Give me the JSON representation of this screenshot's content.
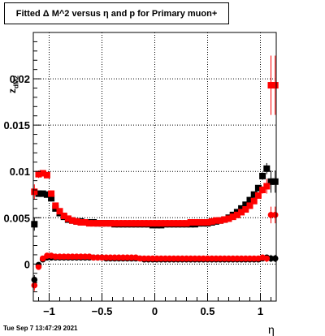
{
  "chart_data": {
    "type": "scatter",
    "title": "Fitted Δ M^2 versus η and p for Primary muon+",
    "xlabel": "η",
    "ylabel": "z_dM2",
    "xlim": [
      -1.15,
      1.15
    ],
    "ylim": [
      -0.004,
      0.025
    ],
    "grid": true,
    "xticks": [
      -1,
      -0.5,
      0,
      0.5,
      1
    ],
    "xtick_labels": [
      "−1",
      "−0.5",
      "0",
      "0.5",
      "1"
    ],
    "yticks": [
      0,
      0.005,
      0.01,
      0.015,
      0.02
    ],
    "ytick_labels": [
      "0",
      "0.005",
      "0.01",
      "0.015",
      "0.02"
    ],
    "footer": "Tue Sep  7 13:47:29 2021",
    "series": [
      {
        "color": "#000000",
        "marker": "square",
        "x": [
          -1.14,
          -1.1,
          -1.06,
          -1.02,
          -0.98,
          -0.94,
          -0.9,
          -0.86,
          -0.82,
          -0.78,
          -0.74,
          -0.7,
          -0.66,
          -0.62,
          -0.58,
          -0.54,
          -0.5,
          -0.46,
          -0.42,
          -0.38,
          -0.34,
          -0.3,
          -0.26,
          -0.22,
          -0.18,
          -0.14,
          -0.1,
          -0.06,
          -0.02,
          0.02,
          0.06,
          0.1,
          0.14,
          0.18,
          0.22,
          0.26,
          0.3,
          0.34,
          0.38,
          0.42,
          0.46,
          0.5,
          0.54,
          0.58,
          0.62,
          0.66,
          0.7,
          0.74,
          0.78,
          0.82,
          0.86,
          0.9,
          0.94,
          0.98,
          1.02,
          1.06,
          1.1,
          1.14
        ],
        "y": [
          0.0043,
          0.0076,
          0.0076,
          0.0075,
          0.0071,
          0.006,
          0.0055,
          0.0051,
          0.0048,
          0.0047,
          0.0046,
          0.0046,
          0.0045,
          0.0045,
          0.0045,
          0.0044,
          0.0044,
          0.0044,
          0.0044,
          0.0043,
          0.0043,
          0.0043,
          0.0043,
          0.0043,
          0.0043,
          0.0043,
          0.0043,
          0.0043,
          0.0042,
          0.0042,
          0.0042,
          0.0043,
          0.0043,
          0.0043,
          0.0043,
          0.0043,
          0.0043,
          0.0043,
          0.0043,
          0.0044,
          0.0044,
          0.0044,
          0.0045,
          0.0046,
          0.0047,
          0.0048,
          0.005,
          0.0053,
          0.0056,
          0.006,
          0.0064,
          0.0069,
          0.0075,
          0.0082,
          0.0095,
          0.0103,
          0.0089,
          0.0089
        ],
        "yerr": [
          0.0007,
          0.0003,
          0.0003,
          0.0003,
          0.0002,
          0.0002,
          0.0001,
          0.0001,
          0.0001,
          0.0001,
          0.0001,
          0.0001,
          0.0001,
          0.0001,
          0.0001,
          0.0001,
          0.0001,
          0.0001,
          0.0001,
          0.0001,
          0.0001,
          0.0001,
          0.0001,
          0.0001,
          0.0001,
          0.0001,
          0.0001,
          0.0001,
          0.0001,
          0.0001,
          0.0001,
          0.0001,
          0.0001,
          0.0001,
          0.0001,
          0.0001,
          0.0001,
          0.0001,
          0.0001,
          0.0001,
          0.0001,
          0.0001,
          0.0001,
          0.0001,
          0.0001,
          0.0001,
          0.0001,
          0.0001,
          0.0001,
          0.0001,
          0.0001,
          0.0001,
          0.0002,
          0.0002,
          0.0004,
          0.0006,
          0.0012,
          0.0012
        ]
      },
      {
        "color": "#ff0000",
        "marker": "square",
        "x": [
          -1.14,
          -1.1,
          -1.06,
          -1.02,
          -0.98,
          -0.94,
          -0.9,
          -0.86,
          -0.82,
          -0.78,
          -0.74,
          -0.7,
          -0.66,
          -0.62,
          -0.58,
          -0.54,
          -0.5,
          -0.46,
          -0.42,
          -0.38,
          -0.34,
          -0.3,
          -0.26,
          -0.22,
          -0.18,
          -0.14,
          -0.1,
          -0.06,
          -0.02,
          0.02,
          0.06,
          0.1,
          0.14,
          0.18,
          0.22,
          0.26,
          0.3,
          0.34,
          0.38,
          0.42,
          0.46,
          0.5,
          0.54,
          0.58,
          0.62,
          0.66,
          0.7,
          0.74,
          0.78,
          0.82,
          0.86,
          0.9,
          0.94,
          0.98,
          1.02,
          1.06,
          1.1,
          1.14
        ],
        "y": [
          0.0078,
          0.0097,
          0.0098,
          0.0096,
          0.0076,
          0.0063,
          0.0057,
          0.0052,
          0.0049,
          0.0047,
          0.0046,
          0.0045,
          0.0045,
          0.0044,
          0.0044,
          0.0044,
          0.0044,
          0.0044,
          0.0044,
          0.0044,
          0.0044,
          0.0044,
          0.0044,
          0.0044,
          0.0044,
          0.0044,
          0.0044,
          0.0044,
          0.0044,
          0.0044,
          0.0044,
          0.0044,
          0.0044,
          0.0044,
          0.0044,
          0.0044,
          0.0044,
          0.0045,
          0.0045,
          0.0045,
          0.0045,
          0.0045,
          0.0046,
          0.0047,
          0.0047,
          0.0048,
          0.0049,
          0.0051,
          0.0053,
          0.0056,
          0.0059,
          0.0063,
          0.0068,
          0.0074,
          0.008,
          0.0084,
          0.0193,
          0.0193
        ],
        "yerr": [
          0.0008,
          0.0004,
          0.0003,
          0.0003,
          0.0002,
          0.0002,
          0.0001,
          0.0001,
          0.0001,
          0.0001,
          0.0001,
          0.0001,
          0.0001,
          0.0001,
          0.0001,
          0.0001,
          0.0001,
          0.0001,
          0.0001,
          0.0001,
          0.0001,
          0.0001,
          0.0001,
          0.0001,
          0.0001,
          0.0001,
          0.0001,
          0.0001,
          0.0001,
          0.0001,
          0.0001,
          0.0001,
          0.0001,
          0.0001,
          0.0001,
          0.0001,
          0.0001,
          0.0001,
          0.0001,
          0.0001,
          0.0001,
          0.0001,
          0.0001,
          0.0001,
          0.0001,
          0.0001,
          0.0001,
          0.0001,
          0.0001,
          0.0001,
          0.0001,
          0.0002,
          0.0002,
          0.0003,
          0.0004,
          0.0008,
          0.0032,
          0.0032
        ]
      },
      {
        "color": "#000000",
        "marker": "circle",
        "x": [
          -1.14,
          -1.1,
          -1.06,
          -1.02,
          -0.98,
          -0.94,
          -0.9,
          -0.86,
          -0.82,
          -0.78,
          -0.74,
          -0.7,
          -0.66,
          -0.62,
          -0.58,
          -0.54,
          -0.5,
          -0.46,
          -0.42,
          -0.38,
          -0.34,
          -0.3,
          -0.26,
          -0.22,
          -0.18,
          -0.14,
          -0.1,
          -0.06,
          -0.02,
          0.02,
          0.06,
          0.1,
          0.14,
          0.18,
          0.22,
          0.26,
          0.3,
          0.34,
          0.38,
          0.42,
          0.46,
          0.5,
          0.54,
          0.58,
          0.62,
          0.66,
          0.7,
          0.74,
          0.78,
          0.82,
          0.86,
          0.9,
          0.94,
          0.98,
          1.02,
          1.06,
          1.1,
          1.14
        ],
        "y": [
          -0.0017,
          -0.0001,
          0.0005,
          0.0007,
          0.0007,
          0.0007,
          0.0007,
          0.0007,
          0.0007,
          0.0007,
          0.0007,
          0.0007,
          0.0007,
          0.0007,
          0.0007,
          0.0007,
          0.0007,
          0.0006,
          0.0006,
          0.0006,
          0.0006,
          0.0006,
          0.0006,
          0.0006,
          0.0006,
          0.0006,
          0.0005,
          0.0005,
          0.0005,
          0.0005,
          0.0005,
          0.0005,
          0.0005,
          0.0005,
          0.0005,
          0.0005,
          0.0005,
          0.0005,
          0.0005,
          0.0005,
          0.0005,
          0.0005,
          0.0005,
          0.0005,
          0.0005,
          0.0005,
          0.0005,
          0.0005,
          0.0005,
          0.0005,
          0.0005,
          0.0005,
          0.0005,
          0.0005,
          0.0006,
          0.0007,
          0.0006,
          0.0006
        ],
        "yerr": [
          0.0005,
          0.0003,
          0.0002,
          0.0001,
          0.0001,
          0.0001,
          0.0001,
          0.0001,
          0.0001,
          0.0001,
          0.0001,
          0.0001,
          0.0001,
          0.0001,
          0.0001,
          0.0001,
          0.0001,
          0.0001,
          0.0001,
          0.0001,
          0.0001,
          0.0001,
          0.0001,
          0.0001,
          0.0001,
          0.0001,
          0.0001,
          0.0001,
          0.0001,
          0.0001,
          0.0001,
          0.0001,
          0.0001,
          0.0001,
          0.0001,
          0.0001,
          0.0001,
          0.0001,
          0.0001,
          0.0001,
          0.0001,
          0.0001,
          0.0001,
          0.0001,
          0.0001,
          0.0001,
          0.0001,
          0.0001,
          0.0001,
          0.0001,
          0.0001,
          0.0001,
          0.0001,
          0.0001,
          0.0002,
          0.0003,
          0.0004,
          0.0004
        ]
      },
      {
        "color": "#ff0000",
        "marker": "circle",
        "x": [
          -1.14,
          -1.1,
          -1.06,
          -1.02,
          -0.98,
          -0.94,
          -0.9,
          -0.86,
          -0.82,
          -0.78,
          -0.74,
          -0.7,
          -0.66,
          -0.62,
          -0.58,
          -0.54,
          -0.5,
          -0.46,
          -0.42,
          -0.38,
          -0.34,
          -0.3,
          -0.26,
          -0.22,
          -0.18,
          -0.14,
          -0.1,
          -0.06,
          -0.02,
          0.02,
          0.06,
          0.1,
          0.14,
          0.18,
          0.22,
          0.26,
          0.3,
          0.34,
          0.38,
          0.42,
          0.46,
          0.5,
          0.54,
          0.58,
          0.62,
          0.66,
          0.7,
          0.74,
          0.78,
          0.82,
          0.86,
          0.9,
          0.94,
          0.98,
          1.02,
          1.06,
          1.1,
          1.14
        ],
        "y": [
          -0.0023,
          -0.0003,
          0.0006,
          0.0009,
          0.0009,
          0.0008,
          0.0008,
          0.0008,
          0.0008,
          0.0008,
          0.0008,
          0.0008,
          0.0008,
          0.0008,
          0.0007,
          0.0007,
          0.0007,
          0.0007,
          0.0007,
          0.0007,
          0.0007,
          0.0007,
          0.0007,
          0.0007,
          0.0007,
          0.0006,
          0.0006,
          0.0006,
          0.0006,
          0.0006,
          0.0006,
          0.0006,
          0.0006,
          0.0006,
          0.0006,
          0.0006,
          0.0006,
          0.0006,
          0.0006,
          0.0006,
          0.0006,
          0.0006,
          0.0006,
          0.0006,
          0.0006,
          0.0006,
          0.0006,
          0.0006,
          0.0006,
          0.0006,
          0.0006,
          0.0006,
          0.0006,
          0.0006,
          0.0007,
          0.0006,
          0.0053,
          0.0053
        ],
        "yerr": [
          0.0006,
          0.0003,
          0.0002,
          0.0001,
          0.0001,
          0.0001,
          0.0001,
          0.0001,
          0.0001,
          0.0001,
          0.0001,
          0.0001,
          0.0001,
          0.0001,
          0.0001,
          0.0001,
          0.0001,
          0.0001,
          0.0001,
          0.0001,
          0.0001,
          0.0001,
          0.0001,
          0.0001,
          0.0001,
          0.0001,
          0.0001,
          0.0001,
          0.0001,
          0.0001,
          0.0001,
          0.0001,
          0.0001,
          0.0001,
          0.0001,
          0.0001,
          0.0001,
          0.0001,
          0.0001,
          0.0001,
          0.0001,
          0.0001,
          0.0001,
          0.0001,
          0.0001,
          0.0001,
          0.0001,
          0.0001,
          0.0001,
          0.0001,
          0.0001,
          0.0001,
          0.0001,
          0.0001,
          0.0002,
          0.0004,
          0.0009,
          0.0009
        ]
      }
    ]
  }
}
